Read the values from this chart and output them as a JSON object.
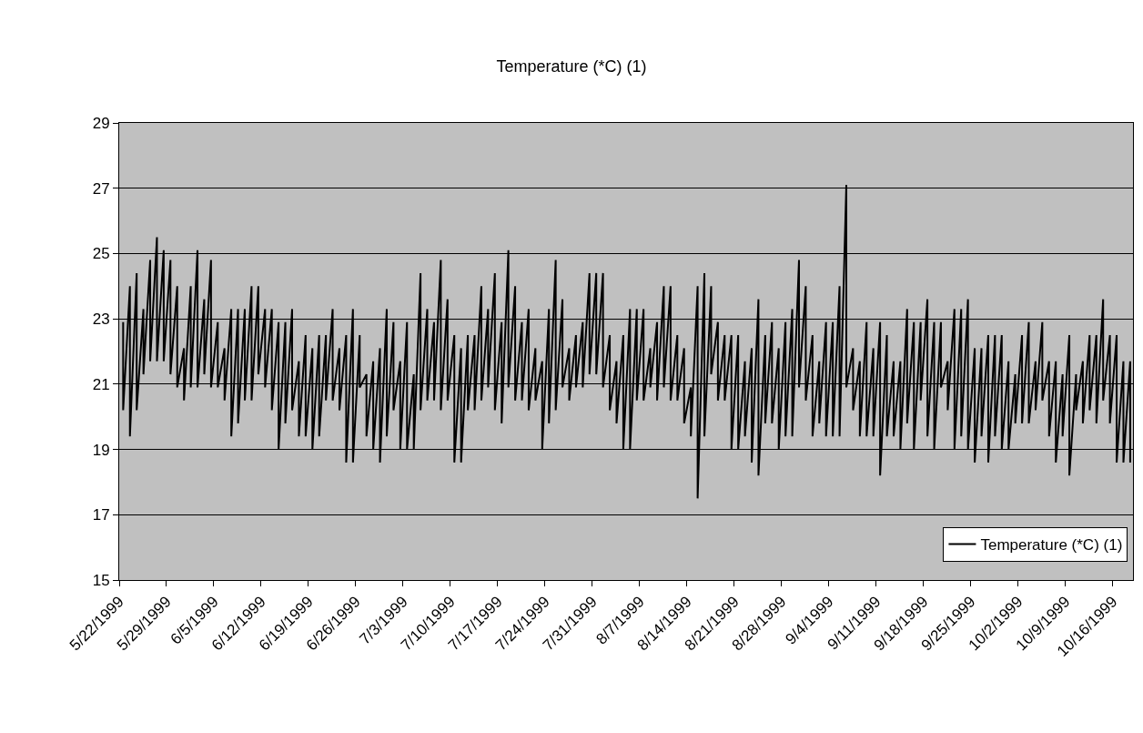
{
  "chart_data": {
    "type": "line",
    "title": "Temperature (*C) (1)",
    "x": [
      "1999-05-22T14:00",
      "1999-05-22T14:00",
      "1999-05-23T14:00",
      "1999-05-23T14:00",
      "1999-05-24T14:00",
      "1999-05-24T14:00",
      "1999-05-25T14:00",
      "1999-05-25T14:00",
      "1999-05-26T14:00",
      "1999-05-26T14:00",
      "1999-05-27T14:00",
      "1999-05-27T14:00",
      "1999-05-28T14:00",
      "1999-05-28T14:00",
      "1999-05-29T14:00",
      "1999-05-29T14:00",
      "1999-05-30T14:00",
      "1999-05-30T14:00",
      "1999-05-31T14:00",
      "1999-05-31T14:00",
      "1999-06-01T14:00",
      "1999-06-01T14:00",
      "1999-06-02T14:00",
      "1999-06-02T14:00",
      "1999-06-03T14:00",
      "1999-06-03T14:00",
      "1999-06-04T14:00",
      "1999-06-04T14:00",
      "1999-06-05T14:00",
      "1999-06-05T14:00",
      "1999-06-06T14:00",
      "1999-06-06T14:00",
      "1999-06-07T14:00",
      "1999-06-07T14:00",
      "1999-06-08T14:00",
      "1999-06-08T14:00",
      "1999-06-09T14:00",
      "1999-06-09T14:00",
      "1999-06-10T14:00",
      "1999-06-10T14:00",
      "1999-06-11T14:00",
      "1999-06-11T14:00",
      "1999-06-12T14:00",
      "1999-06-12T14:00",
      "1999-06-13T14:00",
      "1999-06-13T14:00",
      "1999-06-14T14:00",
      "1999-06-14T14:00",
      "1999-06-15T14:00",
      "1999-06-15T14:00",
      "1999-06-16T14:00",
      "1999-06-16T14:00",
      "1999-06-17T14:00",
      "1999-06-17T14:00",
      "1999-06-18T14:00",
      "1999-06-18T14:00",
      "1999-06-19T14:00",
      "1999-06-19T14:00",
      "1999-06-20T14:00",
      "1999-06-20T14:00",
      "1999-06-21T14:00",
      "1999-06-21T14:00",
      "1999-06-22T14:00",
      "1999-06-22T14:00",
      "1999-06-23T14:00",
      "1999-06-23T14:00",
      "1999-06-24T14:00",
      "1999-06-24T14:00",
      "1999-06-25T14:00",
      "1999-06-25T14:00",
      "1999-06-26T14:00",
      "1999-06-26T14:00",
      "1999-06-27T14:00",
      "1999-06-27T14:00",
      "1999-06-28T14:00",
      "1999-06-28T14:00",
      "1999-06-29T14:00",
      "1999-06-29T14:00",
      "1999-06-30T14:00",
      "1999-06-30T14:00",
      "1999-07-01T14:00",
      "1999-07-01T14:00",
      "1999-07-02T14:00",
      "1999-07-02T14:00",
      "1999-07-03T14:00",
      "1999-07-03T14:00",
      "1999-07-04T14:00",
      "1999-07-04T14:00",
      "1999-07-05T14:00",
      "1999-07-05T14:00",
      "1999-07-06T14:00",
      "1999-07-06T14:00",
      "1999-07-07T14:00",
      "1999-07-07T14:00",
      "1999-07-08T14:00",
      "1999-07-08T14:00",
      "1999-07-09T14:00",
      "1999-07-09T14:00",
      "1999-07-10T14:00",
      "1999-07-10T14:00",
      "1999-07-11T14:00",
      "1999-07-11T14:00",
      "1999-07-12T14:00",
      "1999-07-12T14:00",
      "1999-07-13T14:00",
      "1999-07-13T14:00",
      "1999-07-14T14:00",
      "1999-07-14T14:00",
      "1999-07-15T14:00",
      "1999-07-15T14:00",
      "1999-07-16T14:00",
      "1999-07-16T14:00",
      "1999-07-17T14:00",
      "1999-07-17T14:00",
      "1999-07-18T14:00",
      "1999-07-18T14:00",
      "1999-07-19T14:00",
      "1999-07-19T14:00",
      "1999-07-20T14:00",
      "1999-07-20T14:00",
      "1999-07-21T14:00",
      "1999-07-21T14:00",
      "1999-07-22T14:00",
      "1999-07-22T14:00",
      "1999-07-23T14:00",
      "1999-07-23T14:00",
      "1999-07-24T14:00",
      "1999-07-24T14:00",
      "1999-07-25T14:00",
      "1999-07-25T14:00",
      "1999-07-26T14:00",
      "1999-07-26T14:00",
      "1999-07-27T14:00",
      "1999-07-27T14:00",
      "1999-07-28T14:00",
      "1999-07-28T14:00",
      "1999-07-29T14:00",
      "1999-07-29T14:00",
      "1999-07-30T14:00",
      "1999-07-30T14:00",
      "1999-07-31T14:00",
      "1999-07-31T14:00",
      "1999-08-01T14:00",
      "1999-08-01T14:00",
      "1999-08-02T14:00",
      "1999-08-02T14:00",
      "1999-08-03T14:00",
      "1999-08-03T14:00",
      "1999-08-04T14:00",
      "1999-08-04T14:00",
      "1999-08-05T14:00",
      "1999-08-05T14:00",
      "1999-08-06T14:00",
      "1999-08-06T14:00",
      "1999-08-07T14:00",
      "1999-08-07T14:00",
      "1999-08-08T14:00",
      "1999-08-08T14:00",
      "1999-08-09T14:00",
      "1999-08-09T14:00",
      "1999-08-10T14:00",
      "1999-08-10T14:00",
      "1999-08-11T14:00",
      "1999-08-11T14:00",
      "1999-08-12T14:00",
      "1999-08-12T14:00",
      "1999-08-13T14:00",
      "1999-08-13T14:00",
      "1999-08-14T14:00",
      "1999-08-14T14:00",
      "1999-08-15T14:00",
      "1999-08-15T14:00",
      "1999-08-16T14:00",
      "1999-08-16T14:00",
      "1999-08-17T14:00",
      "1999-08-17T14:00",
      "1999-08-18T14:00",
      "1999-08-18T14:00",
      "1999-08-19T14:00",
      "1999-08-19T14:00",
      "1999-08-20T14:00",
      "1999-08-20T14:00",
      "1999-08-21T14:00",
      "1999-08-21T14:00",
      "1999-08-22T14:00",
      "1999-08-22T14:00",
      "1999-08-23T14:00",
      "1999-08-23T14:00",
      "1999-08-24T14:00",
      "1999-08-24T14:00",
      "1999-08-25T14:00",
      "1999-08-25T14:00",
      "1999-08-26T14:00",
      "1999-08-26T14:00",
      "1999-08-27T14:00",
      "1999-08-27T14:00",
      "1999-08-28T14:00",
      "1999-08-28T14:00",
      "1999-08-29T14:00",
      "1999-08-29T14:00",
      "1999-08-30T14:00",
      "1999-08-30T14:00",
      "1999-08-31T14:00",
      "1999-08-31T14:00",
      "1999-09-01T14:00",
      "1999-09-01T14:00",
      "1999-09-02T14:00",
      "1999-09-02T14:00",
      "1999-09-03T14:00",
      "1999-09-03T14:00",
      "1999-09-04T14:00",
      "1999-09-04T14:00",
      "1999-09-05T14:00",
      "1999-09-05T14:00",
      "1999-09-06T14:00",
      "1999-09-06T14:00",
      "1999-09-07T14:00",
      "1999-09-07T14:00",
      "1999-09-08T14:00",
      "1999-09-08T14:00",
      "1999-09-09T14:00",
      "1999-09-09T14:00",
      "1999-09-10T14:00",
      "1999-09-10T14:00",
      "1999-09-11T14:00",
      "1999-09-11T14:00",
      "1999-09-12T14:00",
      "1999-09-12T14:00",
      "1999-09-13T14:00",
      "1999-09-13T14:00",
      "1999-09-14T14:00",
      "1999-09-14T14:00",
      "1999-09-15T14:00",
      "1999-09-15T14:00",
      "1999-09-16T14:00",
      "1999-09-16T14:00",
      "1999-09-17T14:00",
      "1999-09-17T14:00",
      "1999-09-18T14:00",
      "1999-09-18T14:00",
      "1999-09-19T14:00",
      "1999-09-19T14:00",
      "1999-09-20T14:00",
      "1999-09-20T14:00",
      "1999-09-21T14:00",
      "1999-09-21T14:00",
      "1999-09-22T14:00",
      "1999-09-22T14:00",
      "1999-09-23T14:00",
      "1999-09-23T14:00",
      "1999-09-24T14:00",
      "1999-09-24T14:00",
      "1999-09-25T14:00",
      "1999-09-25T14:00",
      "1999-09-26T14:00",
      "1999-09-26T14:00",
      "1999-09-27T14:00",
      "1999-09-27T14:00",
      "1999-09-28T14:00",
      "1999-09-28T14:00",
      "1999-09-29T14:00",
      "1999-09-29T14:00",
      "1999-09-30T14:00",
      "1999-09-30T14:00",
      "1999-10-01T14:00",
      "1999-10-01T14:00",
      "1999-10-02T14:00",
      "1999-10-02T14:00",
      "1999-10-03T14:00",
      "1999-10-03T14:00",
      "1999-10-04T14:00",
      "1999-10-04T14:00",
      "1999-10-05T14:00",
      "1999-10-05T14:00",
      "1999-10-06T14:00",
      "1999-10-06T14:00",
      "1999-10-07T14:00",
      "1999-10-07T14:00",
      "1999-10-08T14:00",
      "1999-10-08T14:00",
      "1999-10-09T14:00",
      "1999-10-09T14:00",
      "1999-10-10T14:00",
      "1999-10-10T14:00",
      "1999-10-11T14:00",
      "1999-10-11T14:00",
      "1999-10-12T14:00",
      "1999-10-12T14:00",
      "1999-10-13T14:00",
      "1999-10-13T14:00",
      "1999-10-14T14:00",
      "1999-10-14T14:00",
      "1999-10-15T14:00",
      "1999-10-15T14:00",
      "1999-10-16T14:00",
      "1999-10-16T14:00",
      "1999-10-17T14:00",
      "1999-10-17T14:00",
      "1999-10-18T14:00",
      "1999-10-18T14:00"
    ],
    "series": [
      {
        "name": "Temperature (*C) (1)",
        "color": "#000000",
        "values": [
          22.9,
          20.2,
          24.0,
          19.4,
          24.4,
          20.2,
          23.3,
          21.3,
          24.8,
          21.7,
          25.5,
          21.7,
          25.1,
          21.7,
          24.8,
          21.3,
          24.0,
          20.9,
          22.1,
          20.5,
          24.0,
          20.9,
          25.1,
          20.9,
          23.6,
          21.3,
          24.8,
          20.9,
          22.9,
          20.9,
          22.1,
          20.5,
          23.3,
          19.4,
          23.3,
          19.8,
          23.3,
          20.5,
          24.0,
          20.5,
          24.0,
          21.3,
          23.3,
          20.9,
          23.3,
          20.2,
          22.9,
          19.0,
          22.9,
          19.8,
          23.3,
          20.2,
          21.7,
          19.4,
          22.5,
          19.4,
          22.1,
          19.0,
          22.5,
          19.4,
          22.5,
          20.5,
          23.3,
          20.5,
          22.1,
          20.2,
          22.5,
          18.6,
          23.3,
          18.6,
          22.5,
          20.9,
          21.3,
          19.4,
          21.7,
          19.0,
          22.1,
          18.6,
          23.3,
          19.4,
          22.9,
          20.2,
          21.7,
          19.0,
          22.9,
          19.0,
          21.3,
          19.0,
          24.4,
          20.2,
          23.3,
          20.5,
          22.9,
          20.5,
          24.8,
          20.2,
          23.6,
          20.5,
          22.5,
          18.6,
          22.1,
          18.6,
          22.5,
          20.2,
          22.5,
          20.2,
          24.0,
          20.5,
          23.3,
          20.9,
          24.4,
          20.2,
          22.9,
          19.8,
          25.1,
          20.9,
          24.0,
          20.5,
          22.9,
          20.5,
          23.3,
          20.2,
          22.1,
          20.5,
          21.7,
          19.0,
          23.3,
          19.8,
          24.8,
          20.2,
          23.6,
          20.9,
          22.1,
          20.5,
          22.5,
          20.9,
          22.9,
          20.9,
          24.4,
          21.3,
          24.4,
          21.3,
          24.4,
          20.9,
          22.5,
          20.2,
          21.7,
          19.8,
          22.5,
          19.0,
          23.3,
          19.0,
          23.3,
          20.5,
          23.3,
          20.5,
          22.1,
          20.9,
          22.9,
          20.5,
          24.0,
          20.9,
          24.0,
          20.5,
          22.5,
          20.5,
          22.1,
          19.8,
          20.9,
          19.4,
          24.0,
          17.5,
          24.4,
          19.4,
          24.0,
          21.3,
          22.9,
          20.5,
          22.5,
          20.5,
          22.5,
          19.0,
          22.5,
          19.0,
          21.7,
          19.4,
          22.1,
          18.6,
          23.6,
          18.2,
          22.5,
          19.8,
          22.9,
          19.8,
          22.1,
          19.0,
          22.9,
          19.4,
          23.3,
          19.4,
          24.8,
          20.9,
          24.0,
          20.5,
          22.5,
          19.4,
          21.7,
          19.8,
          22.9,
          19.4,
          22.9,
          19.4,
          24.0,
          19.4,
          27.1,
          20.9,
          22.1,
          20.2,
          21.7,
          19.4,
          22.9,
          19.4,
          22.1,
          19.4,
          22.9,
          18.2,
          22.5,
          19.4,
          21.7,
          19.4,
          21.7,
          19.0,
          23.3,
          19.8,
          22.9,
          19.0,
          22.9,
          20.5,
          23.6,
          19.4,
          22.9,
          19.0,
          22.9,
          20.9,
          21.7,
          20.2,
          23.3,
          19.0,
          23.3,
          19.4,
          23.6,
          19.0,
          22.1,
          18.6,
          22.1,
          19.4,
          22.5,
          18.6,
          22.5,
          19.4,
          22.5,
          19.0,
          21.7,
          19.0,
          21.3,
          19.8,
          22.5,
          19.8,
          22.9,
          19.8,
          21.7,
          20.2,
          22.9,
          20.5,
          21.7,
          19.4,
          21.7,
          18.6,
          21.3,
          19.4,
          22.5,
          18.2,
          21.3,
          20.2,
          21.7,
          19.8,
          22.5,
          20.2,
          22.5,
          19.8,
          23.6,
          20.5,
          22.5,
          19.8,
          22.5,
          18.6,
          21.7,
          18.6,
          21.7,
          18.6
        ]
      }
    ],
    "xlim": [
      "1999-05-22",
      "1999-10-19"
    ],
    "xticks": [
      {
        "value": "1999-05-22",
        "label": "5/22/1999"
      },
      {
        "value": "1999-05-29",
        "label": "5/29/1999"
      },
      {
        "value": "1999-06-05",
        "label": "6/5/1999"
      },
      {
        "value": "1999-06-12",
        "label": "6/12/1999"
      },
      {
        "value": "1999-06-19",
        "label": "6/19/1999"
      },
      {
        "value": "1999-06-26",
        "label": "6/26/1999"
      },
      {
        "value": "1999-07-03",
        "label": "7/3/1999"
      },
      {
        "value": "1999-07-10",
        "label": "7/10/1999"
      },
      {
        "value": "1999-07-17",
        "label": "7/17/1999"
      },
      {
        "value": "1999-07-24",
        "label": "7/24/1999"
      },
      {
        "value": "1999-07-31",
        "label": "7/31/1999"
      },
      {
        "value": "1999-08-07",
        "label": "8/7/1999"
      },
      {
        "value": "1999-08-14",
        "label": "8/14/1999"
      },
      {
        "value": "1999-08-21",
        "label": "8/21/1999"
      },
      {
        "value": "1999-08-28",
        "label": "8/28/1999"
      },
      {
        "value": "1999-09-04",
        "label": "9/4/1999"
      },
      {
        "value": "1999-09-11",
        "label": "9/11/1999"
      },
      {
        "value": "1999-09-18",
        "label": "9/18/1999"
      },
      {
        "value": "1999-09-25",
        "label": "9/25/1999"
      },
      {
        "value": "1999-10-02",
        "label": "10/2/1999"
      },
      {
        "value": "1999-10-09",
        "label": "10/9/1999"
      },
      {
        "value": "1999-10-16",
        "label": "10/16/1999"
      }
    ],
    "ylim": [
      15,
      29
    ],
    "yticks": [
      15,
      17,
      19,
      21,
      23,
      25,
      27,
      29
    ],
    "grid": "y",
    "legend": "bottom right",
    "marker": "none",
    "line_style": "solid"
  }
}
